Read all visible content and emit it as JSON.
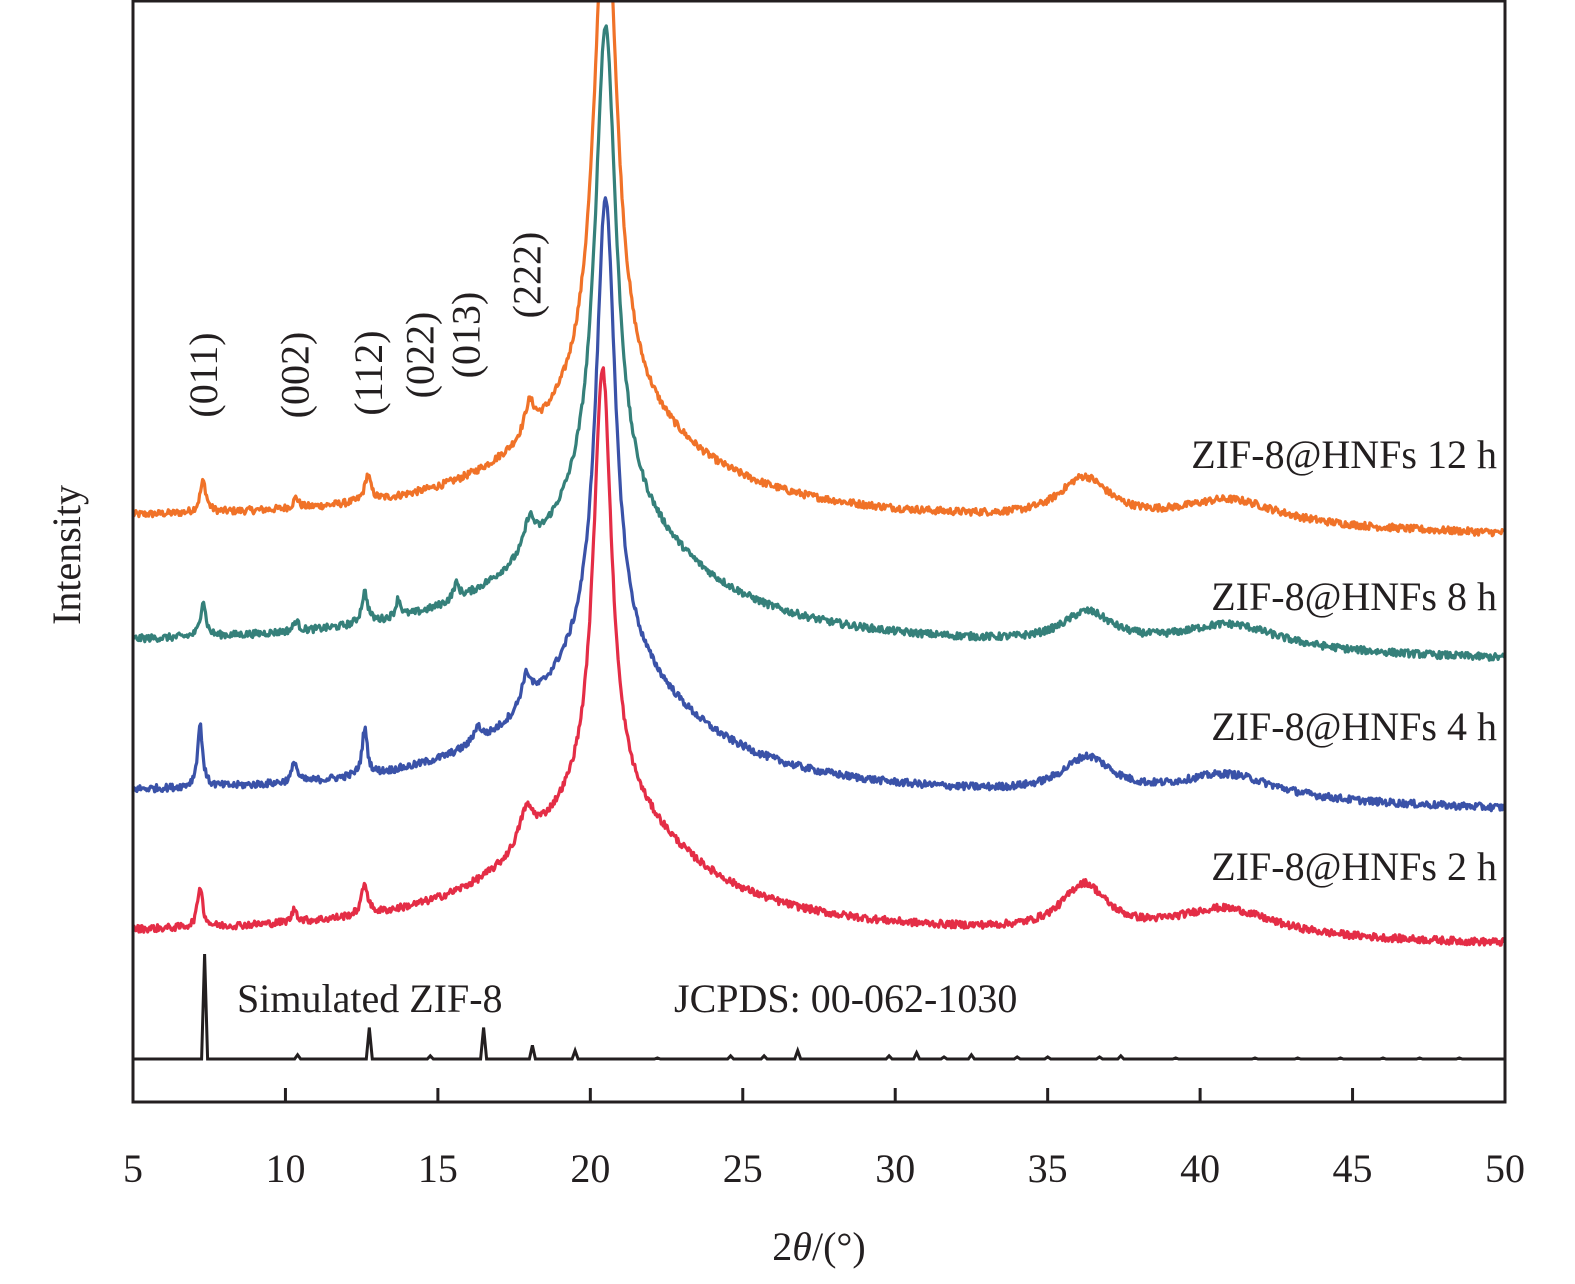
{
  "chart_data": {
    "type": "line",
    "title": "",
    "xlabel_prefix": "2",
    "xlabel_theta": "θ",
    "xlabel_suffix": "/(°)",
    "ylabel": "Intensity",
    "xlim": [
      5,
      50
    ],
    "xticks": [
      5,
      10,
      15,
      20,
      25,
      30,
      35,
      40,
      45,
      50
    ],
    "xtick_labels": [
      "5",
      "10",
      "15",
      "20",
      "25",
      "30",
      "35",
      "40",
      "45",
      "50"
    ],
    "yticks_shown": false,
    "grid": false,
    "legend": "inline labels at right of each curve",
    "series": [
      {
        "name": "ZIF-8@HNFs 12 h",
        "color": "#f07228",
        "offset": 3,
        "baseline": 0.0,
        "peaks": [
          {
            "x": 7.3,
            "height": 0.6,
            "width": 0.12
          },
          {
            "x": 10.35,
            "height": 0.2,
            "width": 0.1
          },
          {
            "x": 12.7,
            "height": 0.5,
            "width": 0.12
          },
          {
            "x": 18.0,
            "height": 0.6,
            "width": 0.2
          },
          {
            "x": 20.5,
            "height": 10.0,
            "width": 0.45
          },
          {
            "x": 36.2,
            "height": 0.8,
            "width": 1.0
          },
          {
            "x": 41.0,
            "height": 0.5,
            "width": 2.0
          }
        ],
        "amorphous": {
          "center": 20.5,
          "height": 2.2,
          "width": 3.3
        },
        "tail_drop": 0.3
      },
      {
        "name": "ZIF-8@HNFs 8 h",
        "color": "#35807a",
        "offset": 2,
        "baseline": 0.0,
        "peaks": [
          {
            "x": 7.3,
            "height": 0.7,
            "width": 0.1
          },
          {
            "x": 10.35,
            "height": 0.2,
            "width": 0.1
          },
          {
            "x": 12.6,
            "height": 0.6,
            "width": 0.12
          },
          {
            "x": 13.7,
            "height": 0.35,
            "width": 0.1
          },
          {
            "x": 15.6,
            "height": 0.3,
            "width": 0.12
          },
          {
            "x": 18.0,
            "height": 0.6,
            "width": 0.2
          },
          {
            "x": 20.5,
            "height": 9.3,
            "width": 0.42
          },
          {
            "x": 36.3,
            "height": 0.6,
            "width": 1.0
          },
          {
            "x": 41.0,
            "height": 0.5,
            "width": 2.0
          }
        ],
        "amorphous": {
          "center": 20.5,
          "height": 2.6,
          "width": 3.3
        },
        "tail_drop": 0.3
      },
      {
        "name": "ZIF-8@HNFs 4 h",
        "color": "#3a52a8",
        "offset": 1,
        "baseline": 0.0,
        "peaks": [
          {
            "x": 7.2,
            "height": 1.2,
            "width": 0.1
          },
          {
            "x": 10.3,
            "height": 0.4,
            "width": 0.1
          },
          {
            "x": 12.6,
            "height": 0.9,
            "width": 0.1
          },
          {
            "x": 16.3,
            "height": 0.3,
            "width": 0.15
          },
          {
            "x": 17.9,
            "height": 0.6,
            "width": 0.2
          },
          {
            "x": 20.5,
            "height": 8.9,
            "width": 0.38
          },
          {
            "x": 36.3,
            "height": 0.7,
            "width": 1.0
          },
          {
            "x": 40.9,
            "height": 0.5,
            "width": 2.0
          }
        ],
        "amorphous": {
          "center": 20.5,
          "height": 2.6,
          "width": 3.2
        },
        "tail_drop": 0.3
      },
      {
        "name": "ZIF-8@HNFs 2 h",
        "color": "#e42d46",
        "offset": 0,
        "baseline": 0.0,
        "peaks": [
          {
            "x": 7.2,
            "height": 0.8,
            "width": 0.1
          },
          {
            "x": 10.3,
            "height": 0.25,
            "width": 0.1
          },
          {
            "x": 12.6,
            "height": 0.6,
            "width": 0.12
          },
          {
            "x": 17.9,
            "height": 0.7,
            "width": 0.3
          },
          {
            "x": 20.4,
            "height": 8.3,
            "width": 0.36
          },
          {
            "x": 36.2,
            "height": 0.9,
            "width": 0.9
          },
          {
            "x": 40.8,
            "height": 0.55,
            "width": 2.0
          }
        ],
        "amorphous": {
          "center": 20.4,
          "height": 2.6,
          "width": 3.2
        },
        "tail_drop": 0.2
      }
    ],
    "reference": {
      "name": "Simulated ZIF-8",
      "annotation": "JCPDS: 00-062-1030",
      "color": "#231f20",
      "sticks": [
        {
          "x": 7.35,
          "height": 1.0
        },
        {
          "x": 10.4,
          "height": 0.04
        },
        {
          "x": 12.75,
          "height": 0.3
        },
        {
          "x": 14.75,
          "height": 0.03
        },
        {
          "x": 16.5,
          "height": 0.3
        },
        {
          "x": 18.1,
          "height": 0.13
        },
        {
          "x": 19.5,
          "height": 0.08
        },
        {
          "x": 22.2,
          "height": 0.01
        },
        {
          "x": 24.6,
          "height": 0.03
        },
        {
          "x": 25.7,
          "height": 0.03
        },
        {
          "x": 26.8,
          "height": 0.08
        },
        {
          "x": 29.8,
          "height": 0.03
        },
        {
          "x": 30.7,
          "height": 0.06
        },
        {
          "x": 31.6,
          "height": 0.02
        },
        {
          "x": 32.5,
          "height": 0.04
        },
        {
          "x": 34.0,
          "height": 0.02
        },
        {
          "x": 35.0,
          "height": 0.02
        },
        {
          "x": 36.7,
          "height": 0.02
        },
        {
          "x": 37.4,
          "height": 0.03
        },
        {
          "x": 39.2,
          "height": 0.01
        },
        {
          "x": 41.8,
          "height": 0.01
        },
        {
          "x": 43.2,
          "height": 0.01
        },
        {
          "x": 44.6,
          "height": 0.01
        },
        {
          "x": 46.0,
          "height": 0.01
        },
        {
          "x": 47.2,
          "height": 0.01
        },
        {
          "x": 48.5,
          "height": 0.01
        }
      ]
    },
    "annotations": [
      {
        "text": "(011)",
        "x": 7.3
      },
      {
        "text": "(002)",
        "x": 10.3
      },
      {
        "text": "(112)",
        "x": 12.7
      },
      {
        "text": "(022)",
        "x": 14.4
      },
      {
        "text": "(013)",
        "x": 15.9
      },
      {
        "text": "(222)",
        "x": 17.9
      }
    ]
  }
}
